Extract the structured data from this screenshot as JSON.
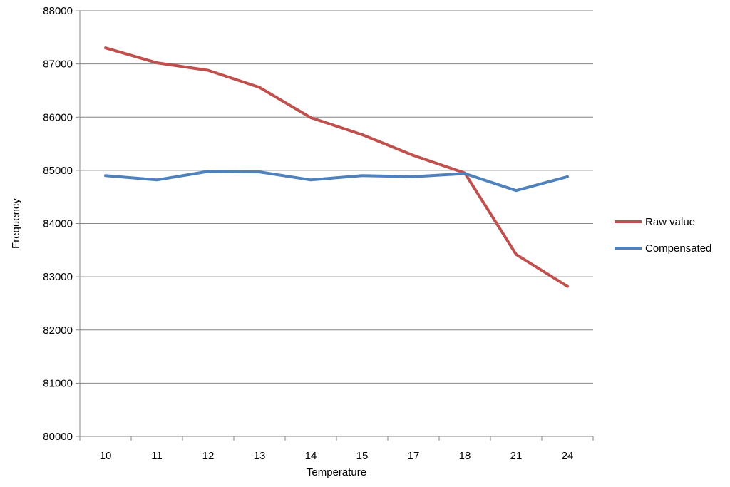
{
  "chart_data": {
    "type": "line",
    "title": "",
    "xlabel": "Temperature",
    "ylabel": "Frequency",
    "categories": [
      "10",
      "11",
      "12",
      "13",
      "14",
      "15",
      "17",
      "18",
      "21",
      "24"
    ],
    "ylim": [
      80000,
      88000
    ],
    "yticks": [
      "80000",
      "81000",
      "82000",
      "83000",
      "84000",
      "85000",
      "86000",
      "87000",
      "88000"
    ],
    "grid": "horizontal",
    "legend_position": "right",
    "series": [
      {
        "name": "Raw value",
        "color": "#C0504D",
        "values": [
          87300,
          87020,
          86880,
          86560,
          85990,
          85670,
          85280,
          84950,
          83420,
          82820
        ]
      },
      {
        "name": "Compensated",
        "color": "#4F81BD",
        "values": [
          84900,
          84820,
          84980,
          84970,
          84820,
          84900,
          84880,
          84940,
          84620,
          84880
        ]
      }
    ]
  }
}
